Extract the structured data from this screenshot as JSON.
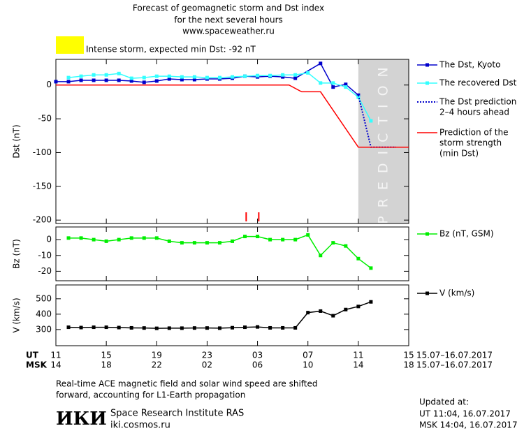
{
  "header": {
    "title": [
      "Forecast of geomagnetic storm and Dst index",
      "for the next several hours",
      "www.spaceweather.ru"
    ],
    "alert": {
      "color": "#ffff00",
      "text": "Intense storm, expected min Dst: -92 nT"
    }
  },
  "chart_data": [
    {
      "type": "line",
      "ylabel": "Dst (nT)",
      "xlim": [
        0,
        28
      ],
      "ylim": [
        -205,
        38
      ],
      "yticks": [
        0,
        -50,
        -100,
        -150,
        -200
      ],
      "shade": {
        "x": [
          24,
          28
        ],
        "color": "#d3d3d3",
        "label": "PREDICTION"
      },
      "event_markers": {
        "x": [
          15.1,
          16.1
        ],
        "color": "#ff0000"
      },
      "series": [
        {
          "name": [
            "The Dst, Kyoto"
          ],
          "color": "#0000cc",
          "marker": "square",
          "dash": "solid",
          "x": [
            0,
            1,
            2,
            3,
            4,
            5,
            6,
            7,
            8,
            9,
            10,
            11,
            12,
            13,
            14,
            15,
            16,
            17,
            18,
            19,
            21,
            22,
            23,
            24
          ],
          "values": [
            5,
            5,
            7,
            7,
            7,
            7,
            6,
            4,
            6,
            9,
            8,
            8,
            9,
            9,
            10,
            13,
            12,
            13,
            12,
            10,
            32,
            -3,
            1,
            -15
          ]
        },
        {
          "name": [
            "The recovered Dst"
          ],
          "color": "#33ffff",
          "marker": "square",
          "dash": "solid",
          "x": [
            1,
            2,
            3,
            4,
            5,
            6,
            7,
            8,
            9,
            10,
            11,
            12,
            13,
            14,
            15,
            16,
            17,
            18,
            19,
            20,
            21,
            22,
            23,
            24,
            25
          ],
          "values": [
            11,
            13,
            15,
            15,
            17,
            10,
            11,
            13,
            13,
            12,
            12,
            11,
            11,
            12,
            13,
            14,
            14,
            15,
            15,
            18,
            3,
            3,
            -3,
            -18,
            -53
          ]
        },
        {
          "name": [
            "The Dst prediction",
            "2–4 hours ahead"
          ],
          "color": "#0000cc",
          "marker": "none",
          "dash": "dotted",
          "x": [
            24,
            25,
            27
          ],
          "values": [
            -15,
            -92,
            -92
          ]
        },
        {
          "name": [
            "Prediction of the",
            "storm strength",
            "(min Dst)"
          ],
          "color": "#ff0000",
          "marker": "none",
          "dash": "solid",
          "x": [
            0,
            18.5,
            19.5,
            21,
            24,
            28
          ],
          "values": [
            0,
            0,
            -10,
            -10,
            -92,
            -92
          ]
        }
      ]
    },
    {
      "type": "line",
      "ylabel": "Bz (nT)",
      "xlim": [
        0,
        28
      ],
      "ylim": [
        -26,
        8
      ],
      "yticks": [
        0,
        -10,
        -20
      ],
      "series": [
        {
          "name": [
            "Bz (nT, GSM)"
          ],
          "color": "#00ee00",
          "marker": "square",
          "dash": "solid",
          "x": [
            1,
            2,
            3,
            4,
            5,
            6,
            7,
            8,
            9,
            10,
            11,
            12,
            13,
            14,
            15,
            16,
            17,
            18,
            19,
            20,
            21,
            22,
            23,
            24,
            25
          ],
          "values": [
            1,
            1,
            0,
            -1,
            0,
            1,
            1,
            1,
            -1,
            -2,
            -2,
            -2,
            -2,
            -1,
            2,
            2,
            0,
            0,
            0,
            3,
            -10,
            -2,
            -4,
            -12,
            -18
          ]
        }
      ]
    },
    {
      "type": "line",
      "ylabel": "V (km/s)",
      "xlim": [
        0,
        28
      ],
      "ylim": [
        195,
        590
      ],
      "yticks": [
        300,
        400,
        500
      ],
      "xtitle": "UT",
      "x2title": "MSK",
      "xdate": "15.07–16.07.2017",
      "xticks": [
        {
          "value": 0,
          "label": "11"
        },
        {
          "value": 4,
          "label": "15"
        },
        {
          "value": 8,
          "label": "19"
        },
        {
          "value": 12,
          "label": "23"
        },
        {
          "value": 16,
          "label": "03"
        },
        {
          "value": 20,
          "label": "07"
        },
        {
          "value": 24,
          "label": "11"
        },
        {
          "value": 28,
          "label": "15"
        }
      ],
      "x2ticks": [
        {
          "value": 0,
          "label": "14"
        },
        {
          "value": 4,
          "label": "18"
        },
        {
          "value": 8,
          "label": "22"
        },
        {
          "value": 12,
          "label": "02"
        },
        {
          "value": 16,
          "label": "06"
        },
        {
          "value": 20,
          "label": "10"
        },
        {
          "value": 24,
          "label": "14"
        },
        {
          "value": 28,
          "label": "18"
        }
      ],
      "series": [
        {
          "name": [
            "V (km/s)"
          ],
          "color": "#000000",
          "marker": "square",
          "dash": "solid",
          "x": [
            1,
            2,
            3,
            4,
            5,
            6,
            7,
            8,
            9,
            10,
            11,
            12,
            13,
            14,
            15,
            16,
            17,
            18,
            19,
            20,
            21,
            22,
            23,
            24,
            25
          ],
          "values": [
            315,
            313,
            315,
            315,
            313,
            311,
            310,
            308,
            309,
            309,
            310,
            310,
            309,
            312,
            315,
            317,
            311,
            311,
            311,
            410,
            420,
            390,
            430,
            450,
            480
          ]
        }
      ]
    }
  ],
  "footer": {
    "note": [
      "Real-time ACE magnetic field and solar wind speed are shifted",
      "forward, accounting for L1-Earth propagation"
    ],
    "logo": "ИКИ",
    "institute": "Space Research Institute RAS",
    "url": "iki.cosmos.ru",
    "updated": [
      "Updated at:",
      "UT   11:04, 16.07.2017",
      "MSK 14:04, 16.07.2017"
    ]
  }
}
